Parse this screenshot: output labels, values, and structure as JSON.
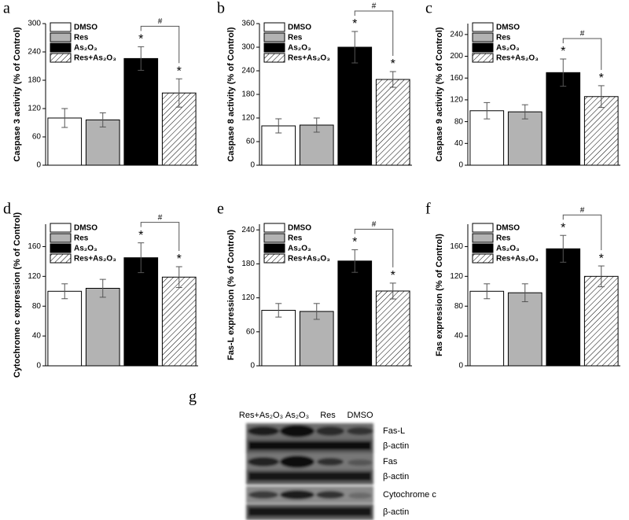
{
  "chart_data": [
    {
      "type": "bar",
      "panel": "a",
      "ylabel": "Caspase 3 activity (% of Control)",
      "categories": [
        "DMSO",
        "Res",
        "As₂O₃",
        "Res+As₂O₃"
      ],
      "values": [
        100,
        96,
        226,
        153
      ],
      "errors": [
        20,
        15,
        25,
        30
      ],
      "colors": [
        "#ffffff",
        "#b3b3b3",
        "#000000",
        "#ffffff"
      ],
      "hatch": [
        false,
        false,
        false,
        true
      ],
      "marks": [
        null,
        null,
        "*",
        "*"
      ],
      "bracket": "#",
      "ylim": [
        0,
        300
      ],
      "yticks": [
        0,
        60,
        120,
        180,
        240,
        300
      ]
    },
    {
      "type": "bar",
      "panel": "b",
      "ylabel": "Caspase 8 activity (% of Control)",
      "categories": [
        "DMSO",
        "Res",
        "As₂O₃",
        "Res+As₂O₃"
      ],
      "values": [
        100,
        102,
        300,
        218
      ],
      "errors": [
        18,
        18,
        40,
        20
      ],
      "colors": [
        "#ffffff",
        "#b3b3b3",
        "#000000",
        "#ffffff"
      ],
      "hatch": [
        false,
        false,
        false,
        true
      ],
      "marks": [
        null,
        null,
        "*",
        "*"
      ],
      "bracket": "#",
      "ylim": [
        0,
        360
      ],
      "yticks": [
        0,
        60,
        120,
        180,
        240,
        300,
        360
      ]
    },
    {
      "type": "bar",
      "panel": "c",
      "ylabel": "Caspase 9 activity (% of Control)",
      "categories": [
        "DMSO",
        "Res",
        "As₂O₃",
        "Res+As₂O₃"
      ],
      "values": [
        100,
        98,
        170,
        126
      ],
      "errors": [
        15,
        13,
        25,
        20
      ],
      "colors": [
        "#ffffff",
        "#b3b3b3",
        "#000000",
        "#ffffff"
      ],
      "hatch": [
        false,
        false,
        false,
        true
      ],
      "marks": [
        null,
        null,
        "*",
        "*"
      ],
      "bracket": "#",
      "ylim": [
        0,
        260
      ],
      "yticks": [
        0,
        40,
        80,
        120,
        160,
        200,
        240
      ]
    },
    {
      "type": "bar",
      "panel": "d",
      "ylabel": "Cytochrome c expression (% of Control)",
      "categories": [
        "DMSO",
        "Res",
        "As₂O₃",
        "Res+As₂O₃"
      ],
      "values": [
        100,
        104,
        145,
        119
      ],
      "errors": [
        10,
        12,
        20,
        14
      ],
      "colors": [
        "#ffffff",
        "#b3b3b3",
        "#000000",
        "#ffffff"
      ],
      "hatch": [
        false,
        false,
        false,
        true
      ],
      "marks": [
        null,
        null,
        "*",
        "*"
      ],
      "bracket": "#",
      "ylim": [
        0,
        190
      ],
      "yticks": [
        0,
        40,
        80,
        120,
        160
      ]
    },
    {
      "type": "bar",
      "panel": "e",
      "ylabel": "Fas-L expression (% of Control)",
      "categories": [
        "DMSO",
        "Res",
        "As₂O₃",
        "Res+As₂O₃"
      ],
      "values": [
        98,
        96,
        185,
        132
      ],
      "errors": [
        12,
        14,
        20,
        14
      ],
      "colors": [
        "#ffffff",
        "#b3b3b3",
        "#000000",
        "#ffffff"
      ],
      "hatch": [
        false,
        false,
        false,
        true
      ],
      "marks": [
        null,
        null,
        "*",
        "*"
      ],
      "bracket": "#",
      "ylim": [
        0,
        250
      ],
      "yticks": [
        0,
        60,
        120,
        180,
        240
      ]
    },
    {
      "type": "bar",
      "panel": "f",
      "ylabel": "Fas expression (% of Control)",
      "categories": [
        "DMSO",
        "Res",
        "As₂O₃",
        "Res+As₂O₃"
      ],
      "values": [
        100,
        98,
        157,
        120
      ],
      "errors": [
        10,
        12,
        18,
        14
      ],
      "colors": [
        "#ffffff",
        "#b3b3b3",
        "#000000",
        "#ffffff"
      ],
      "hatch": [
        false,
        false,
        false,
        true
      ],
      "marks": [
        null,
        null,
        "*",
        "*"
      ],
      "bracket": "#",
      "ylim": [
        0,
        190
      ],
      "yticks": [
        0,
        40,
        80,
        120,
        160
      ]
    }
  ],
  "blot": {
    "panel": "g",
    "lanes": [
      "Res+As₂O₃",
      "As₂O₃",
      "Res",
      "DMSO"
    ],
    "bands": [
      "Fas-L",
      "β-actin",
      "Fas",
      "β-actin",
      "Cytochrome c",
      "β-actin"
    ]
  }
}
